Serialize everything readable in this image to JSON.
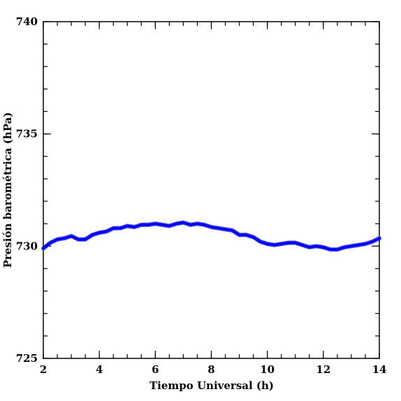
{
  "chart_data": {
    "type": "scatter",
    "title": "",
    "xlabel": "Tiempo Universal (h)",
    "ylabel": "Presión barométrica (hPa)",
    "xlim": [
      2,
      14
    ],
    "ylim": [
      725,
      740
    ],
    "xticks": [
      2,
      4,
      6,
      8,
      10,
      12,
      14
    ],
    "yticks": [
      725,
      730,
      735,
      740
    ],
    "x_minor_step": 0.5,
    "y_minor_step": 1,
    "grid": false,
    "marker": "asterisk",
    "color": "#0000ff",
    "series": [
      {
        "x": [
          2.0,
          2.25,
          2.5,
          2.75,
          3.0,
          3.25,
          3.5,
          3.75,
          4.0,
          4.25,
          4.5,
          4.75,
          5.0,
          5.25,
          5.5,
          5.75,
          6.0,
          6.25,
          6.5,
          6.75,
          7.0,
          7.25,
          7.5,
          7.75,
          8.0,
          8.25,
          8.5,
          8.75,
          9.0,
          9.25,
          9.5,
          9.75,
          10.0,
          10.25,
          10.5,
          10.75,
          11.0,
          11.25,
          11.5,
          11.75,
          12.0,
          12.25,
          12.5,
          12.75,
          13.0,
          13.25,
          13.5,
          13.75,
          14.0
        ],
        "y": [
          729.9,
          730.15,
          730.3,
          730.35,
          730.45,
          730.3,
          730.3,
          730.5,
          730.6,
          730.65,
          730.8,
          730.8,
          730.9,
          730.85,
          730.95,
          730.95,
          731.0,
          730.95,
          730.9,
          731.0,
          731.05,
          730.95,
          731.0,
          730.95,
          730.85,
          730.8,
          730.75,
          730.7,
          730.5,
          730.5,
          730.4,
          730.2,
          730.1,
          730.05,
          730.1,
          730.15,
          730.15,
          730.05,
          729.95,
          730.0,
          729.95,
          729.85,
          729.85,
          729.95,
          730.0,
          730.05,
          730.1,
          730.2,
          730.35
        ]
      }
    ]
  }
}
